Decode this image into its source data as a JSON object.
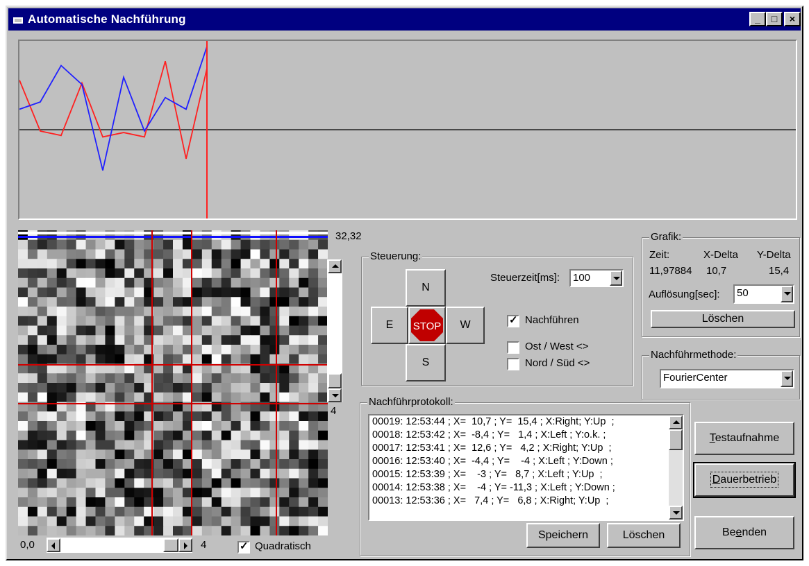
{
  "window": {
    "title": "Automatische Nachführung"
  },
  "titlebar_buttons": {
    "minimize": "_",
    "maximize": "□",
    "close": "×"
  },
  "graph": {
    "red": [
      0.25,
      0.6,
      0.63,
      0.27,
      0.64,
      0.61,
      0.64,
      0.12,
      0.79,
      0.17
    ],
    "blue": [
      0.45,
      0.4,
      0.15,
      0.28,
      0.87,
      0.23,
      0.6,
      0.37,
      0.45,
      0.02
    ],
    "colors": {
      "red": "#ff2020",
      "blue": "#2020ff"
    }
  },
  "image_panel": {
    "coord_label": "32,32",
    "side_value": "4",
    "origin_label": "0,0",
    "bottom_value": "4",
    "quadratisch_label": "Quadratisch",
    "quadratisch_checked": true
  },
  "steuerung": {
    "title": "Steuerung:",
    "north": "N",
    "south": "S",
    "east": "E",
    "west": "W",
    "stop": "STOP",
    "steuerzeit_label": "Steuerzeit[ms]:",
    "steuerzeit_value": "100",
    "nachfuehren_label": "Nachführen",
    "nachfuehren_checked": true,
    "ostwest_label": "Ost / West <>",
    "ostwest_checked": false,
    "nordsued_label": "Nord / Süd <>",
    "nordsued_checked": false
  },
  "grafik": {
    "title": "Grafik:",
    "zeit_header": "Zeit:",
    "xdelta_header": "X-Delta",
    "ydelta_header": "Y-Delta",
    "zeit_value": "11,97884",
    "xdelta_value": "10,7",
    "ydelta_value": "15,4",
    "aufloesung_label": "Auflösung[sec]:",
    "aufloesung_value": "50",
    "loeschen": "Löschen"
  },
  "methode": {
    "title": "Nachführmethode:",
    "value": "FourierCenter"
  },
  "protokoll": {
    "title": "Nachführprotokoll:",
    "entries": [
      "00019: 12:53:44 ; X=  10,7 ; Y=  15,4 ; X:Right; Y:Up  ;",
      "00018: 12:53:42 ; X=  -8,4 ; Y=   1,4 ; X:Left ; Y:o.k. ;",
      "00017: 12:53:41 ; X=  12,6 ; Y=   4,2 ; X:Right; Y:Up  ;",
      "00016: 12:53:40 ; X=  -4,4 ; Y=    -4 ; X:Left ; Y:Down ;",
      "00015: 12:53:39 ; X=    -3 ; Y=   8,7 ; X:Left ; Y:Up  ;",
      "00014: 12:53:38 ; X=    -4 ; Y= -11,3 ; X:Left ; Y:Down ;",
      "00013: 12:53:36 ; X=   7,4 ; Y=   6,8 ; X:Right; Y:Up  ;"
    ],
    "speichern": "Speichern",
    "loeschen": "Löschen"
  },
  "actions": {
    "testaufnahme": {
      "first": "T",
      "rest": "estaufnahme"
    },
    "dauerbetrieb": {
      "first": "D",
      "rest": "auerbetrieb"
    },
    "beenden": {
      "pre": "Be",
      "ul": "e",
      "post": "nden"
    }
  }
}
